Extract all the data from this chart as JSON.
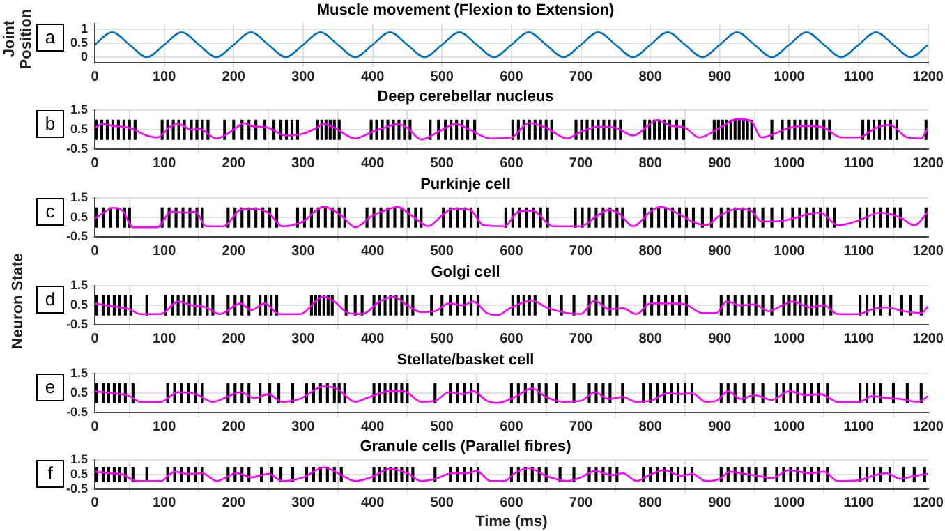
{
  "chart_data": [
    {
      "type": "line",
      "title": "Muscle movement (Flexion to Extension)",
      "ylabel": "Joint Position",
      "annotations": [
        "a"
      ],
      "color": "#0072bd",
      "x": [
        0,
        25,
        50,
        75,
        100,
        125,
        150,
        175,
        200,
        225,
        250,
        275,
        300,
        325,
        350,
        375,
        400,
        425,
        450,
        475,
        500,
        525,
        550,
        575,
        600,
        625,
        650,
        675,
        700,
        725,
        750,
        775,
        800,
        825,
        850,
        875,
        900,
        925,
        950,
        975,
        1000,
        1025,
        1050,
        1075,
        1100,
        1125,
        1150,
        1175,
        1200
      ],
      "values": [
        0.45,
        0.9,
        0.45,
        0,
        0.45,
        0.9,
        0.45,
        0,
        0.45,
        0.9,
        0.45,
        0,
        0.45,
        0.9,
        0.45,
        0,
        0.45,
        0.9,
        0.45,
        0,
        0.45,
        0.9,
        0.45,
        0,
        0.45,
        0.9,
        0.45,
        0,
        0.45,
        0.9,
        0.45,
        0,
        0.45,
        0.9,
        0.45,
        0,
        0.45,
        0.9,
        0.45,
        0,
        0.45,
        0.9,
        0.45,
        0,
        0.45,
        0.9,
        0.45,
        0,
        0.45
      ],
      "xlim": [
        0,
        1200
      ],
      "xticks": [
        0,
        100,
        200,
        300,
        400,
        500,
        600,
        700,
        800,
        900,
        1000,
        1100,
        1200
      ],
      "ylim": [
        -0.2,
        1.2
      ],
      "yticks": [
        0,
        0.5,
        1
      ],
      "grid": true
    },
    {
      "type": "bar",
      "title": "Deep cerebellar nucleus",
      "annotations": [
        "b"
      ],
      "xlim": [
        0,
        1200
      ],
      "xticks": [
        0,
        100,
        200,
        300,
        400,
        500,
        600,
        700,
        800,
        900,
        1000,
        1100,
        1200
      ],
      "ylim": [
        -0.5,
        1.5
      ],
      "yticks": [
        -0.5,
        0.5,
        1.5
      ],
      "grid": true,
      "series": [
        {
          "type": "bar",
          "color": "#000000",
          "x": [
            2,
            10,
            18,
            26,
            34,
            42,
            50,
            58,
            97,
            105,
            113,
            121,
            129,
            139,
            147,
            155,
            163,
            187,
            200,
            212,
            222,
            232,
            245,
            258,
            268,
            276,
            284,
            292,
            321,
            327,
            333,
            339,
            345,
            352,
            398,
            406,
            414,
            422,
            430,
            438,
            446,
            454,
            483,
            495,
            505,
            513,
            521,
            529,
            537,
            547,
            602,
            610,
            618,
            626,
            634,
            642,
            650,
            658,
            693,
            701,
            709,
            717,
            725,
            733,
            741,
            749,
            757,
            792,
            799,
            806,
            813,
            820,
            828,
            838,
            848,
            892,
            898,
            904,
            910,
            916,
            922,
            928,
            934,
            940,
            946,
            975,
            990,
            1000,
            1008,
            1016,
            1024,
            1032,
            1040,
            1050,
            1058,
            1106,
            1114,
            1122,
            1130,
            1138,
            1146,
            1155,
            1197
          ],
          "values": [
            1,
            1,
            1,
            1,
            1,
            1,
            1,
            1,
            1,
            1,
            1,
            1,
            1,
            1,
            1,
            1,
            1,
            1,
            1,
            1,
            1,
            1,
            1,
            1,
            1,
            1,
            1,
            1,
            1,
            1,
            1,
            1,
            1,
            1,
            1,
            1,
            1,
            1,
            1,
            1,
            1,
            1,
            1,
            1,
            1,
            1,
            1,
            1,
            1,
            1,
            1,
            1,
            1,
            1,
            1,
            1,
            1,
            1,
            1,
            1,
            1,
            1,
            1,
            1,
            1,
            1,
            1,
            1,
            1,
            1,
            1,
            1,
            1,
            1,
            1,
            1,
            1,
            1,
            1,
            1,
            1,
            1,
            1,
            1,
            1,
            1,
            1,
            1,
            1,
            1,
            1,
            1,
            1,
            1,
            1,
            1,
            1,
            1,
            1,
            1,
            1,
            1,
            1
          ]
        },
        {
          "type": "line",
          "color": "#ff00ff",
          "x": [
            0,
            12,
            25,
            50,
            75,
            90,
            110,
            120,
            140,
            150,
            175,
            200,
            215,
            225,
            250,
            275,
            300,
            320,
            330,
            345,
            375,
            400,
            425,
            435,
            450,
            470,
            500,
            520,
            540,
            570,
            600,
            625,
            650,
            680,
            700,
            725,
            750,
            775,
            800,
            810,
            830,
            850,
            870,
            900,
            925,
            945,
            960,
            1000,
            1025,
            1050,
            1075,
            1100,
            1125,
            1145,
            1170,
            1190,
            1200
          ],
          "values": [
            0.6,
            0.8,
            0.7,
            0.6,
            0.2,
            0.1,
            0.7,
            0.8,
            0.5,
            0.55,
            0.05,
            0.5,
            0.85,
            0.7,
            0.6,
            0.2,
            0.3,
            0.6,
            0.8,
            0.6,
            0.05,
            0.4,
            0.7,
            0.8,
            0.6,
            0,
            0.5,
            0.8,
            0.5,
            0.05,
            0.1,
            0.85,
            0.6,
            0.05,
            0.4,
            0.65,
            0.6,
            0.2,
            0.8,
            1.0,
            0.7,
            0.6,
            0.1,
            0.6,
            1.05,
            0.95,
            0.1,
            0.6,
            0.7,
            0.6,
            0.1,
            0.1,
            0.6,
            0.75,
            0.1,
            0.05,
            0.6
          ]
        }
      ]
    },
    {
      "type": "bar",
      "title": "Purkinje cell",
      "annotations": [
        "c"
      ],
      "xlim": [
        0,
        1200
      ],
      "xticks": [
        0,
        100,
        200,
        300,
        400,
        500,
        600,
        700,
        800,
        900,
        1000,
        1100,
        1200
      ],
      "ylim": [
        -0.5,
        1.5
      ],
      "yticks": [
        -0.5,
        0.5,
        1.5
      ],
      "grid": true,
      "series": [
        {
          "type": "bar",
          "color": "#000000",
          "x": [
            3,
            13,
            23,
            33,
            43,
            50,
            97,
            107,
            117,
            127,
            137,
            147,
            155,
            192,
            202,
            212,
            222,
            232,
            242,
            252,
            262,
            292,
            302,
            312,
            322,
            332,
            342,
            352,
            360,
            392,
            402,
            412,
            422,
            432,
            442,
            452,
            462,
            470,
            502,
            512,
            522,
            532,
            542,
            552,
            592,
            602,
            612,
            622,
            632,
            642,
            652,
            692,
            702,
            712,
            722,
            732,
            742,
            752,
            760,
            792,
            802,
            812,
            822,
            832,
            842,
            852,
            862,
            875,
            888,
            902,
            912,
            922,
            932,
            942,
            950,
            962,
            975,
            990,
            1005,
            1015,
            1025,
            1035,
            1045,
            1055,
            1065,
            1102,
            1112,
            1122,
            1132,
            1142,
            1152,
            1160,
            1197
          ],
          "values": [
            1,
            1,
            1,
            1,
            1,
            1,
            1,
            1,
            1,
            1,
            1,
            1,
            1,
            1,
            1,
            1,
            1,
            1,
            1,
            1,
            1,
            1,
            1,
            1,
            1,
            1,
            1,
            1,
            1,
            1,
            1,
            1,
            1,
            1,
            1,
            1,
            1,
            1,
            1,
            1,
            1,
            1,
            1,
            1,
            1,
            1,
            1,
            1,
            1,
            1,
            1,
            1,
            1,
            1,
            1,
            1,
            1,
            1,
            1,
            1,
            1,
            1,
            1,
            1,
            1,
            1,
            1,
            1,
            1,
            1,
            1,
            1,
            1,
            1,
            1,
            1,
            1,
            1,
            1,
            1,
            1,
            1,
            1,
            1,
            1,
            1,
            1,
            1,
            1,
            1,
            1,
            1,
            1
          ]
        },
        {
          "type": "line",
          "color": "#ff00ff",
          "x": [
            0,
            15,
            25,
            40,
            55,
            90,
            110,
            130,
            145,
            160,
            185,
            210,
            225,
            250,
            270,
            300,
            320,
            330,
            355,
            375,
            400,
            425,
            435,
            460,
            480,
            500,
            515,
            540,
            560,
            590,
            610,
            630,
            660,
            700,
            720,
            740,
            755,
            775,
            800,
            815,
            840,
            860,
            880,
            900,
            925,
            945,
            960,
            980,
            1000,
            1030,
            1045,
            1070,
            1100,
            1130,
            1160,
            1180,
            1200
          ],
          "values": [
            0.45,
            0.8,
            1.0,
            0.85,
            0,
            0,
            0.8,
            0.75,
            0.8,
            0.05,
            0.05,
            0.9,
            0.95,
            0.75,
            0.05,
            0.3,
            0.9,
            1.05,
            0.6,
            0,
            0.6,
            0.95,
            1.05,
            0.5,
            0.05,
            0.6,
            0.95,
            0.9,
            0.1,
            0.05,
            0.8,
            0.85,
            0.05,
            0.05,
            0.5,
            0.9,
            0.7,
            0.05,
            0.8,
            1.05,
            0.7,
            0.3,
            0.1,
            0.6,
            0.95,
            0.85,
            0.3,
            0.3,
            0.4,
            0.7,
            0.75,
            0.1,
            0.35,
            0.75,
            0.5,
            0.1,
            0.8
          ]
        }
      ]
    },
    {
      "type": "bar",
      "title": "Golgi cell",
      "ylabel": "Neuron State",
      "annotations": [
        "d"
      ],
      "xlim": [
        0,
        1200
      ],
      "xticks": [
        0,
        100,
        200,
        300,
        400,
        500,
        600,
        700,
        800,
        900,
        1000,
        1100,
        1200
      ],
      "ylim": [
        -0.5,
        1.5
      ],
      "yticks": [
        -0.5,
        0.5,
        1.5
      ],
      "grid": true,
      "series": [
        {
          "type": "bar",
          "color": "#000000",
          "x": [
            3,
            12,
            20,
            28,
            36,
            44,
            52,
            75,
            102,
            112,
            120,
            128,
            136,
            144,
            152,
            162,
            170,
            192,
            202,
            212,
            222,
            238,
            246,
            254,
            262,
            312,
            318,
            324,
            330,
            336,
            342,
            362,
            375,
            385,
            402,
            410,
            418,
            426,
            434,
            442,
            450,
            458,
            485,
            500,
            512,
            522,
            532,
            542,
            552,
            602,
            610,
            618,
            626,
            634,
            655,
            672,
            690,
            712,
            722,
            732,
            742,
            752,
            792,
            802,
            812,
            822,
            832,
            842,
            852,
            902,
            912,
            922,
            932,
            942,
            952,
            962,
            975,
            992,
            1000,
            1008,
            1016,
            1024,
            1032,
            1040,
            1050,
            1060,
            1102,
            1112,
            1122,
            1132,
            1145,
            1162,
            1175,
            1190
          ],
          "values": [
            1,
            1,
            1,
            1,
            1,
            1,
            1,
            1,
            1,
            1,
            1,
            1,
            1,
            1,
            1,
            1,
            1,
            1,
            1,
            1,
            1,
            1,
            1,
            1,
            1,
            1,
            1,
            1,
            1,
            1,
            1,
            1,
            1,
            1,
            1,
            1,
            1,
            1,
            1,
            1,
            1,
            1,
            1,
            1,
            1,
            1,
            1,
            1,
            1,
            1,
            1,
            1,
            1,
            1,
            1,
            1,
            1,
            1,
            1,
            1,
            1,
            1,
            1,
            1,
            1,
            1,
            1,
            1,
            1,
            1,
            1,
            1,
            1,
            1,
            1,
            1,
            1,
            1,
            1,
            1,
            1,
            1,
            1,
            1,
            1,
            1,
            1,
            1,
            1,
            1,
            1,
            1,
            1,
            1
          ]
        },
        {
          "type": "line",
          "color": "#ff00ff",
          "x": [
            0,
            25,
            50,
            65,
            95,
            120,
            140,
            160,
            180,
            210,
            225,
            245,
            265,
            295,
            330,
            345,
            365,
            385,
            410,
            430,
            450,
            470,
            490,
            510,
            530,
            545,
            565,
            580,
            600,
            630,
            650,
            680,
            700,
            720,
            740,
            760,
            780,
            800,
            825,
            850,
            875,
            895,
            910,
            930,
            950,
            970,
            990,
            1005,
            1030,
            1050,
            1070,
            1100,
            1120,
            1140,
            1165,
            1190,
            1200
          ],
          "values": [
            0.6,
            0.45,
            0.3,
            0.05,
            0.05,
            0.7,
            0.5,
            0.4,
            0.05,
            0.6,
            0.25,
            0.6,
            0.05,
            0.05,
            0.95,
            0.7,
            0.1,
            0.05,
            0.7,
            0.95,
            0.5,
            0.15,
            0.2,
            0.6,
            0.5,
            0.7,
            0.1,
            0,
            0.4,
            0.75,
            0.4,
            0.1,
            0.05,
            0.75,
            0.3,
            0.35,
            0.05,
            0.6,
            0.6,
            0.55,
            0.1,
            0.1,
            0.7,
            0.5,
            0.55,
            0.2,
            0.5,
            0.7,
            0.4,
            0.5,
            0.05,
            0.05,
            0.3,
            0.4,
            0.2,
            0.1,
            0.45
          ]
        }
      ]
    },
    {
      "type": "bar",
      "title": "Stellate/basket cell",
      "annotations": [
        "e"
      ],
      "xlim": [
        0,
        1200
      ],
      "xticks": [
        0,
        100,
        200,
        300,
        400,
        500,
        600,
        700,
        800,
        900,
        1000,
        1100,
        1200
      ],
      "ylim": [
        -0.5,
        1.5
      ],
      "yticks": [
        -0.5,
        0.5,
        1.5
      ],
      "grid": true,
      "series": [
        {
          "type": "bar",
          "color": "#000000",
          "x": [
            3,
            12,
            20,
            28,
            36,
            44,
            55,
            105,
            115,
            125,
            135,
            145,
            155,
            192,
            202,
            212,
            222,
            238,
            252,
            265,
            285,
            305,
            315,
            325,
            335,
            345,
            352,
            360,
            402,
            410,
            418,
            426,
            434,
            442,
            450,
            490,
            512,
            522,
            532,
            542,
            552,
            600,
            610,
            620,
            630,
            640,
            650,
            665,
            690,
            712,
            722,
            732,
            742,
            760,
            790,
            800,
            810,
            820,
            830,
            840,
            850,
            860,
            902,
            912,
            922,
            935,
            948,
            962,
            982,
            992,
            1002,
            1012,
            1022,
            1032,
            1042,
            1055,
            1102,
            1112,
            1122,
            1132,
            1150,
            1170,
            1190
          ],
          "values": [
            1,
            1,
            1,
            1,
            1,
            1,
            1,
            1,
            1,
            1,
            1,
            1,
            1,
            1,
            1,
            1,
            1,
            1,
            1,
            1,
            1,
            1,
            1,
            1,
            1,
            1,
            1,
            1,
            1,
            1,
            1,
            1,
            1,
            1,
            1,
            1,
            1,
            1,
            1,
            1,
            1,
            1,
            1,
            1,
            1,
            1,
            1,
            1,
            1,
            1,
            1,
            1,
            1,
            1,
            1,
            1,
            1,
            1,
            1,
            1,
            1,
            1,
            1,
            1,
            1,
            1,
            1,
            1,
            1,
            1,
            1,
            1,
            1,
            1,
            1,
            1,
            1,
            1,
            1,
            1,
            1,
            1,
            1
          ]
        },
        {
          "type": "line",
          "color": "#ff00ff",
          "x": [
            0,
            25,
            50,
            65,
            95,
            120,
            145,
            170,
            190,
            210,
            230,
            250,
            270,
            295,
            330,
            350,
            375,
            395,
            425,
            445,
            470,
            490,
            510,
            530,
            545,
            565,
            580,
            605,
            630,
            650,
            675,
            700,
            720,
            740,
            760,
            780,
            800,
            825,
            845,
            860,
            880,
            895,
            912,
            930,
            950,
            975,
            1000,
            1025,
            1045,
            1070,
            1100,
            1120,
            1140,
            1160,
            1185,
            1200
          ],
          "values": [
            0.6,
            0.5,
            0.35,
            0.05,
            0.05,
            0.55,
            0.45,
            0.05,
            0.3,
            0.55,
            0.25,
            0.45,
            0.05,
            0.2,
            0.85,
            0.7,
            0.05,
            0.3,
            0.6,
            0.6,
            0.05,
            0.1,
            0.55,
            0.45,
            0.6,
            0.1,
            0,
            0.3,
            0.75,
            0.3,
            0.05,
            0.1,
            0.55,
            0.2,
            0.3,
            0.05,
            0.1,
            0.5,
            0.45,
            0.5,
            0.05,
            0.1,
            0.6,
            0.2,
            0.4,
            0.15,
            0.6,
            0.4,
            0.45,
            0.05,
            0.05,
            0.35,
            0.25,
            0.2,
            0.05,
            0.35
          ]
        }
      ]
    },
    {
      "type": "bar",
      "title": "Granule cells (Parallel fibres)",
      "xlabel": "Time (ms)",
      "annotations": [
        "f"
      ],
      "xlim": [
        0,
        1200
      ],
      "xticks": [
        0,
        100,
        200,
        300,
        400,
        500,
        600,
        700,
        800,
        900,
        1000,
        1100,
        1200
      ],
      "ylim": [
        -0.5,
        1.5
      ],
      "yticks": [
        -0.5,
        0.5,
        1.5
      ],
      "grid": true,
      "series": [
        {
          "type": "bar",
          "color": "#000000",
          "x": [
            3,
            12,
            20,
            28,
            36,
            44,
            55,
            75,
            105,
            115,
            125,
            135,
            145,
            155,
            192,
            202,
            212,
            222,
            240,
            255,
            268,
            285,
            305,
            315,
            325,
            335,
            345,
            355,
            402,
            410,
            418,
            426,
            434,
            442,
            450,
            458,
            490,
            512,
            522,
            532,
            542,
            552,
            600,
            610,
            620,
            630,
            640,
            650,
            670,
            690,
            712,
            722,
            732,
            742,
            752,
            790,
            800,
            810,
            820,
            830,
            840,
            850,
            860,
            902,
            912,
            922,
            932,
            942,
            952,
            965,
            982,
            992,
            1002,
            1012,
            1022,
            1032,
            1042,
            1055,
            1102,
            1112,
            1122,
            1132,
            1145,
            1165,
            1180,
            1195
          ],
          "values": [
            1,
            1,
            1,
            1,
            1,
            1,
            1,
            1,
            1,
            1,
            1,
            1,
            1,
            1,
            1,
            1,
            1,
            1,
            1,
            1,
            1,
            1,
            1,
            1,
            1,
            1,
            1,
            1,
            1,
            1,
            1,
            1,
            1,
            1,
            1,
            1,
            1,
            1,
            1,
            1,
            1,
            1,
            1,
            1,
            1,
            1,
            1,
            1,
            1,
            1,
            1,
            1,
            1,
            1,
            1,
            1,
            1,
            1,
            1,
            1,
            1,
            1,
            1,
            1,
            1,
            1,
            1,
            1,
            1,
            1,
            1,
            1,
            1,
            1,
            1,
            1,
            1,
            1,
            1,
            1,
            1,
            1,
            1,
            1,
            1,
            1
          ]
        },
        {
          "type": "line",
          "color": "#ff00ff",
          "x": [
            0,
            20,
            40,
            60,
            95,
            115,
            135,
            155,
            175,
            205,
            225,
            250,
            270,
            300,
            330,
            350,
            375,
            400,
            425,
            450,
            470,
            490,
            515,
            535,
            550,
            570,
            590,
            605,
            625,
            650,
            680,
            700,
            720,
            745,
            760,
            780,
            800,
            820,
            845,
            860,
            880,
            900,
            915,
            935,
            955,
            975,
            1000,
            1030,
            1050,
            1070,
            1100,
            1120,
            1140,
            1160,
            1180,
            1200
          ],
          "values": [
            0.7,
            0.6,
            0.5,
            0.05,
            0.05,
            0.7,
            0.55,
            0.6,
            0.05,
            0.6,
            0.3,
            0.55,
            0.05,
            0.3,
            1.0,
            0.6,
            0.05,
            0.35,
            0.9,
            0.6,
            0.05,
            0.2,
            0.6,
            0.6,
            0.75,
            0.05,
            0.05,
            0.6,
            0.95,
            0.4,
            0.05,
            0.3,
            0.75,
            0.45,
            0.6,
            0.05,
            0.5,
            0.8,
            0.4,
            0.55,
            0.05,
            0.2,
            0.7,
            0.55,
            0.4,
            0.25,
            0.8,
            0.6,
            0.7,
            0.05,
            0.1,
            0.4,
            0.6,
            0.2,
            0.4,
            0.55
          ]
        }
      ]
    }
  ]
}
